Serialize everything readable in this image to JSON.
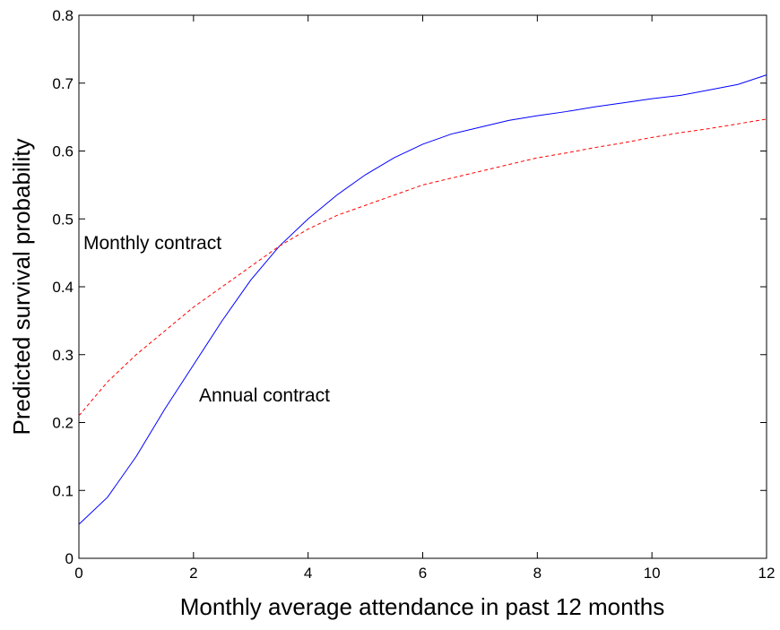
{
  "chart_data": {
    "type": "line",
    "xlabel": "Monthly average attendance in past 12 months",
    "ylabel": "Predicted survival probability",
    "x": [
      0,
      0.5,
      1,
      1.5,
      2,
      2.5,
      3,
      3.5,
      4,
      4.5,
      5,
      5.5,
      6,
      6.5,
      7,
      7.5,
      8,
      8.5,
      9,
      9.5,
      10,
      10.5,
      11,
      11.5,
      12
    ],
    "series": [
      {
        "name": "Annual contract",
        "color": "#0000ff",
        "style": "solid",
        "values": [
          0.05,
          0.09,
          0.15,
          0.22,
          0.285,
          0.35,
          0.41,
          0.46,
          0.5,
          0.535,
          0.565,
          0.59,
          0.61,
          0.625,
          0.635,
          0.645,
          0.652,
          0.658,
          0.665,
          0.671,
          0.677,
          0.682,
          0.69,
          0.698,
          0.712
        ]
      },
      {
        "name": "Monthly contract",
        "color": "#ff0000",
        "style": "dashed",
        "values": [
          0.21,
          0.26,
          0.3,
          0.335,
          0.37,
          0.4,
          0.43,
          0.46,
          0.485,
          0.505,
          0.52,
          0.535,
          0.55,
          0.56,
          0.57,
          0.58,
          0.59,
          0.597,
          0.605,
          0.612,
          0.62,
          0.627,
          0.633,
          0.64,
          0.647
        ]
      }
    ],
    "xlim": [
      0,
      12
    ],
    "xticks": [
      0,
      2,
      4,
      6,
      8,
      10,
      12
    ],
    "ylim": [
      0,
      0.8
    ],
    "yticks": [
      0,
      0.1,
      0.2,
      0.3,
      0.4,
      0.5,
      0.6,
      0.7,
      0.8
    ],
    "grid": false
  }
}
